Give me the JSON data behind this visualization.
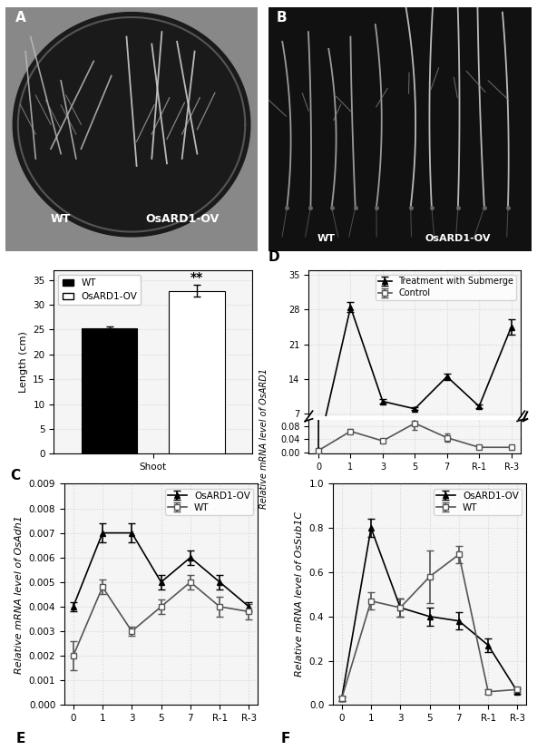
{
  "panel_C": {
    "wt_value": 25.2,
    "ov_value": 32.8,
    "wt_err": 0.5,
    "ov_err": 1.2,
    "ylabel": "Length (cm)",
    "ylim": [
      0,
      37
    ],
    "yticks": [
      0,
      5,
      10,
      15,
      20,
      25,
      30,
      35
    ],
    "significance": "**",
    "xlabel": "Shoot"
  },
  "panel_D": {
    "x_num": [
      0,
      1,
      2,
      3,
      4,
      5,
      6
    ],
    "x_labels": [
      "0",
      "1",
      "3",
      "5",
      "7",
      "R-1",
      "R-3"
    ],
    "submerge_values": [
      0.008,
      28.5,
      9.5,
      8.0,
      14.5,
      8.5,
      24.5
    ],
    "submerge_err": [
      0.001,
      1.0,
      0.5,
      0.3,
      0.6,
      0.4,
      1.5
    ],
    "control_values": [
      0.005,
      0.065,
      0.035,
      0.09,
      0.045,
      0.015,
      0.015
    ],
    "control_err": [
      0.001,
      0.008,
      0.005,
      0.02,
      0.012,
      0.005,
      0.005
    ],
    "ylabel": "Relative mRNA level of OsARD1",
    "yticks_upper": [
      7,
      14,
      21,
      28,
      35
    ],
    "yticks_lower": [
      0.0,
      0.04,
      0.08
    ],
    "ylim_upper": [
      6.5,
      36
    ],
    "ylim_lower": [
      -0.005,
      0.1
    ],
    "submerge_label": "Treatment with Submerge",
    "control_label": "Control"
  },
  "panel_E": {
    "x_labels": [
      "0",
      "1",
      "3",
      "5",
      "7",
      "R-1",
      "R-3"
    ],
    "x_num": [
      0,
      1,
      2,
      3,
      4,
      5,
      6
    ],
    "ov_values": [
      0.004,
      0.007,
      0.007,
      0.005,
      0.006,
      0.005,
      0.004
    ],
    "ov_err": [
      0.0002,
      0.0004,
      0.0004,
      0.0003,
      0.0003,
      0.0003,
      0.0002
    ],
    "wt_values": [
      0.002,
      0.0048,
      0.003,
      0.004,
      0.005,
      0.004,
      0.0038
    ],
    "wt_err": [
      0.0006,
      0.0003,
      0.0002,
      0.0003,
      0.0003,
      0.0004,
      0.0003
    ],
    "ylabel": "Relative mRNA level of OsAdh1",
    "ylim": [
      0.0,
      0.009
    ],
    "yticks": [
      0.0,
      0.001,
      0.002,
      0.003,
      0.004,
      0.005,
      0.006,
      0.007,
      0.008,
      0.009
    ],
    "ov_label": "OsARD1-OV",
    "wt_label": "WT"
  },
  "panel_F": {
    "x_labels": [
      "0",
      "1",
      "3",
      "5",
      "7",
      "R-1",
      "R-3"
    ],
    "x_num": [
      0,
      1,
      2,
      3,
      4,
      5,
      6
    ],
    "ov_values": [
      0.03,
      0.8,
      0.44,
      0.4,
      0.38,
      0.27,
      0.06
    ],
    "ov_err": [
      0.01,
      0.04,
      0.04,
      0.04,
      0.04,
      0.03,
      0.01
    ],
    "wt_values": [
      0.03,
      0.47,
      0.44,
      0.58,
      0.68,
      0.06,
      0.07
    ],
    "wt_err": [
      0.01,
      0.04,
      0.04,
      0.12,
      0.04,
      0.01,
      0.01
    ],
    "ylabel": "Relative mRNA level of OsSub1C",
    "ylim": [
      0.0,
      1.0
    ],
    "yticks": [
      0.0,
      0.2,
      0.4,
      0.6,
      0.8,
      1.0
    ],
    "ov_label": "OsARD1-OV",
    "wt_label": "WT"
  },
  "bg_color": "#ffffff",
  "plot_bg": "#f5f5f5",
  "grid_color": "#cccccc",
  "font_size": 8,
  "panel_label_size": 11
}
